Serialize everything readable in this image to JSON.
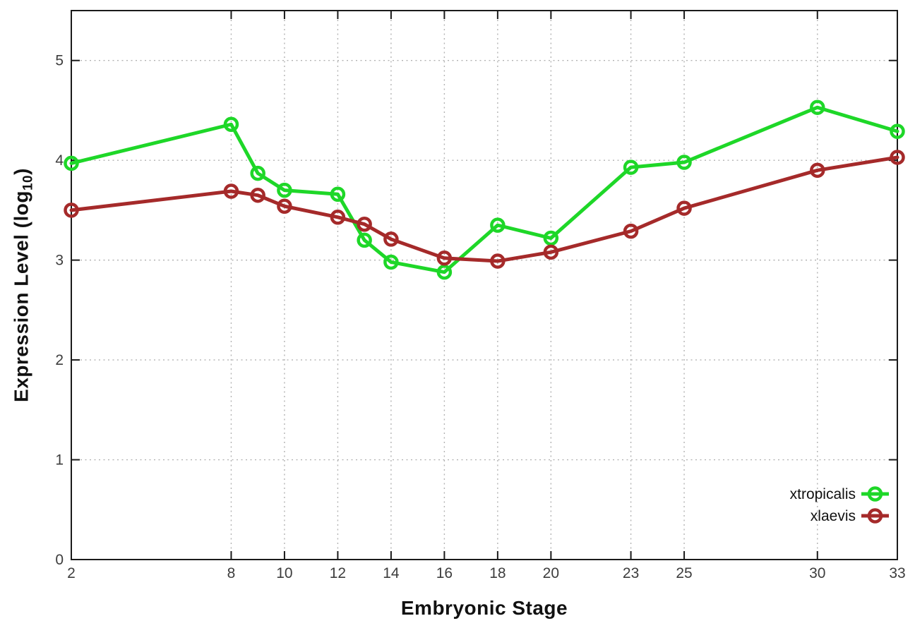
{
  "chart_data": {
    "type": "line",
    "title": "",
    "xlabel": "Embryonic Stage",
    "ylabel": {
      "main": "Expression Level (log",
      "sub": "10",
      "suffix": ")"
    },
    "x": [
      2,
      8,
      9,
      10,
      12,
      13,
      14,
      16,
      18,
      20,
      23,
      25,
      30,
      33
    ],
    "x_ticks": [
      2,
      8,
      10,
      12,
      14,
      16,
      18,
      20,
      23,
      25,
      30,
      33
    ],
    "y_ticks": [
      0,
      1,
      2,
      3,
      4,
      5
    ],
    "xlim": [
      2,
      33
    ],
    "ylim": [
      0,
      5.5
    ],
    "grid": true,
    "legend_position": "bottom-right",
    "series": [
      {
        "name": "xtropicalis",
        "color": "#1ed728",
        "values": [
          3.97,
          4.36,
          3.87,
          3.7,
          3.66,
          3.2,
          2.98,
          2.88,
          3.35,
          3.22,
          3.93,
          3.98,
          4.53,
          4.29
        ]
      },
      {
        "name": "xlaevis",
        "color": "#a52a2a",
        "values": [
          3.5,
          3.69,
          3.65,
          3.54,
          3.43,
          3.36,
          3.21,
          3.02,
          2.99,
          3.08,
          3.29,
          3.52,
          3.9,
          4.03
        ]
      }
    ],
    "colors": {
      "border": "#1a1a1a",
      "grid": "#b3b3b3",
      "tick_label": "#3d3d3d",
      "legend_text": "#111111",
      "background": "#ffffff"
    }
  }
}
